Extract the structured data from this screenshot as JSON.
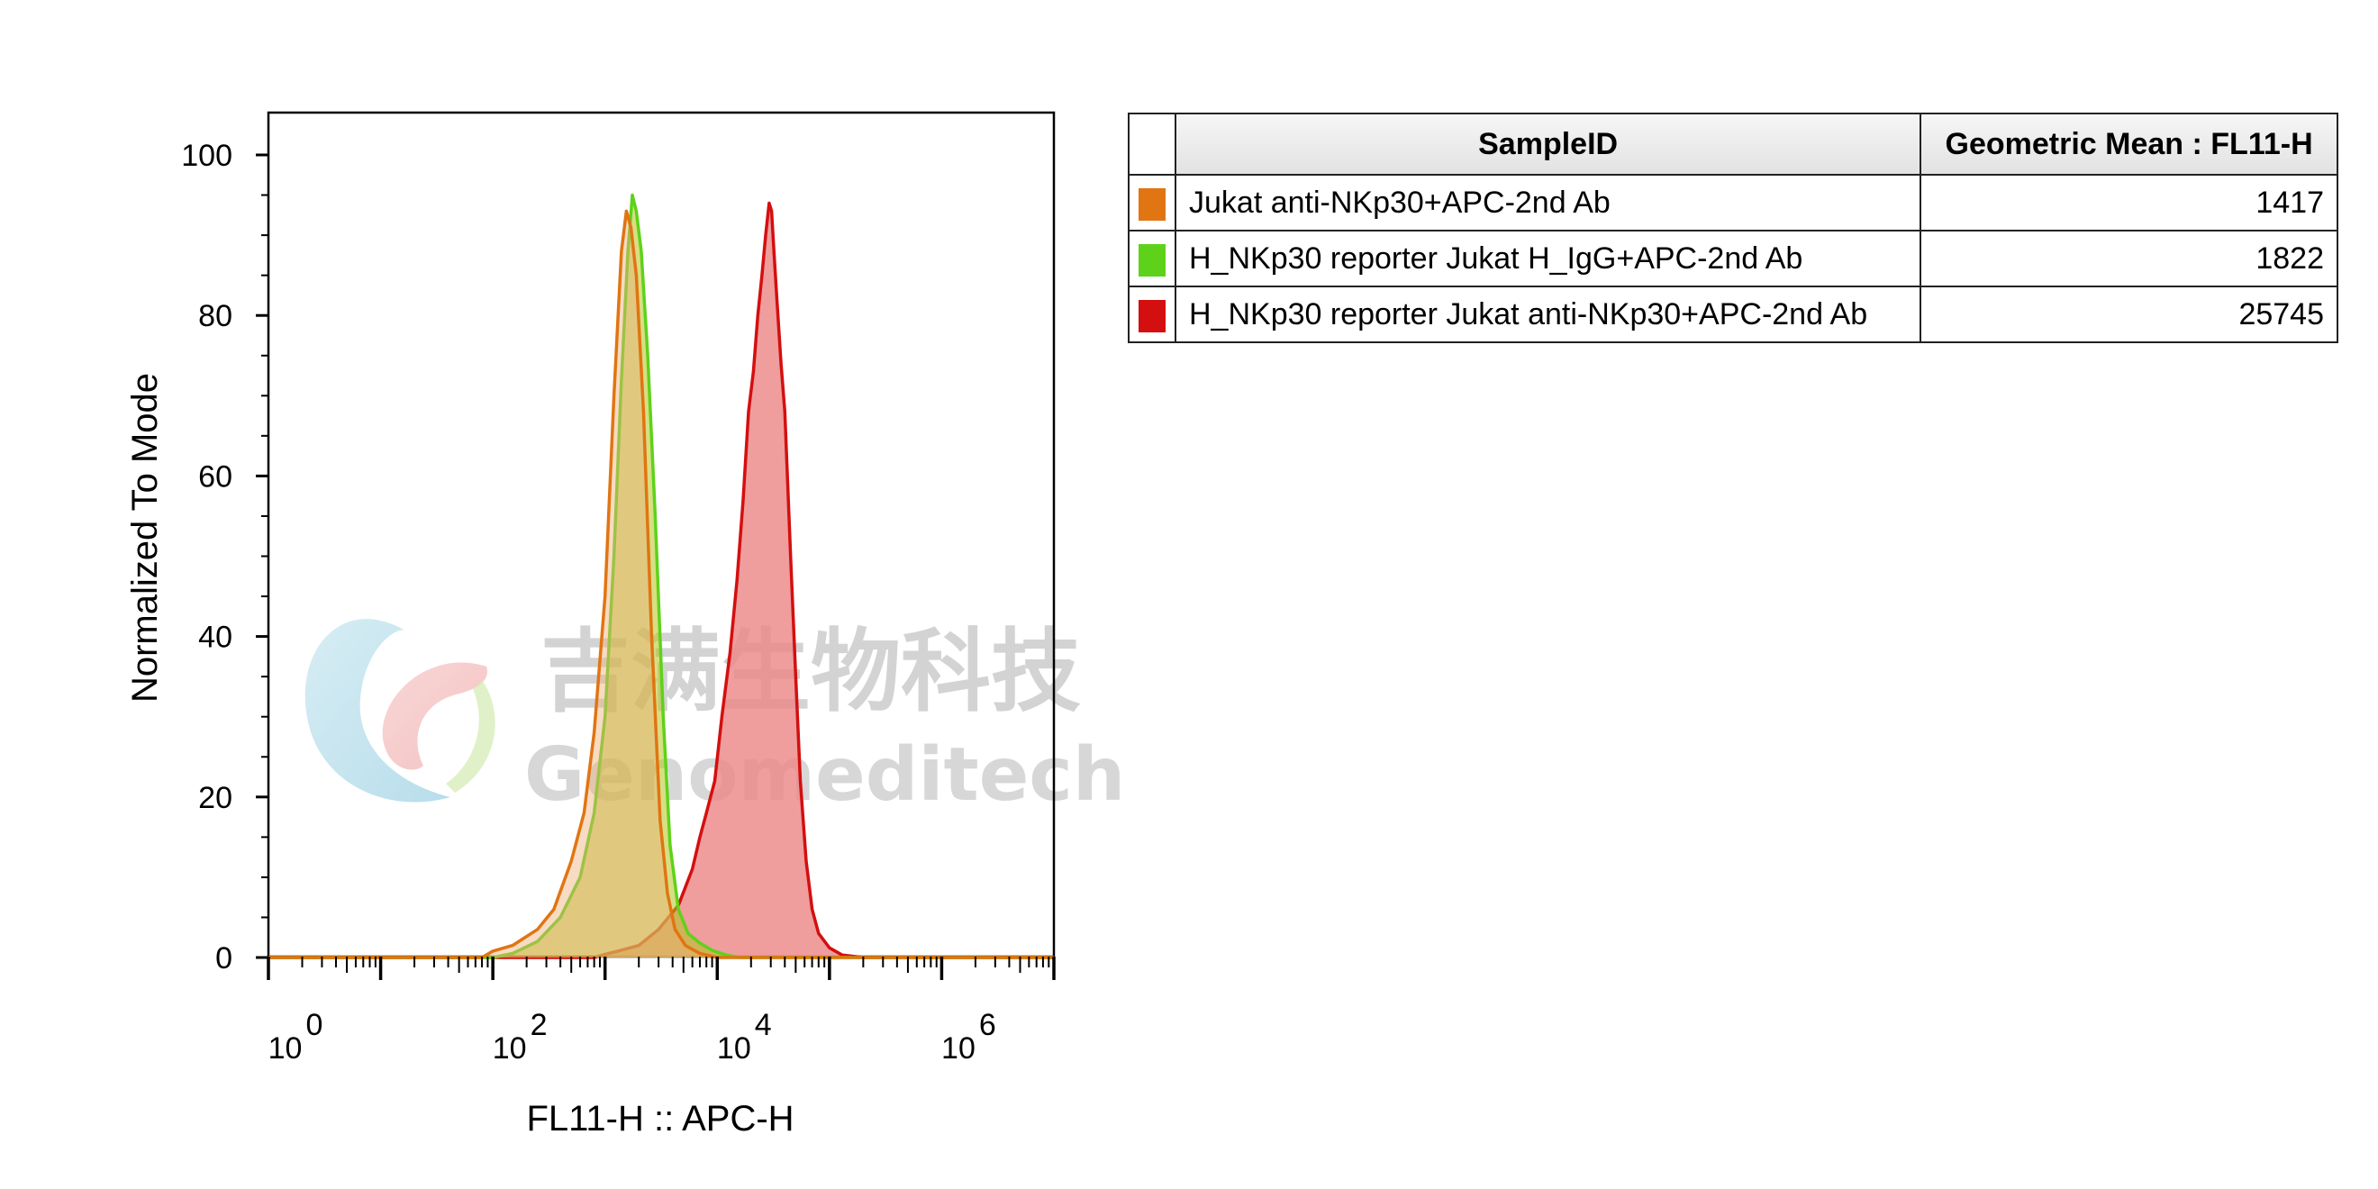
{
  "chart_data": {
    "type": "area",
    "xlabel": "FL11-H :: APC-H",
    "ylabel": "Normalized To Mode",
    "x_scale": "log",
    "xlim": [
      1,
      10000000
    ],
    "ylim": [
      0,
      100
    ],
    "x_ticks": [
      {
        "base": "10",
        "exp": "0",
        "value": 1
      },
      {
        "base": "10",
        "exp": "2",
        "value": 100
      },
      {
        "base": "10",
        "exp": "4",
        "value": 10000
      },
      {
        "base": "10",
        "exp": "6",
        "value": 1000000
      }
    ],
    "y_ticks": [
      "0",
      "20",
      "40",
      "60",
      "80",
      "100"
    ],
    "series": [
      {
        "name": "H_NKp30 reporter Jukat anti-NKp30+APC-2nd Ab",
        "color": "#d40f0f",
        "fill": "#ec8888",
        "fill_opacity": 0.82,
        "points": [
          [
            1,
            0
          ],
          [
            800,
            0
          ],
          [
            1000,
            0.4
          ],
          [
            1300,
            0.8
          ],
          [
            2000,
            1.5
          ],
          [
            3000,
            3.5
          ],
          [
            4500,
            6.5
          ],
          [
            6000,
            11
          ],
          [
            7000,
            15
          ],
          [
            8000,
            18
          ],
          [
            9500,
            22
          ],
          [
            11000,
            30
          ],
          [
            13000,
            38
          ],
          [
            15000,
            47
          ],
          [
            17000,
            57
          ],
          [
            19000,
            68
          ],
          [
            21000,
            73
          ],
          [
            23000,
            80
          ],
          [
            25000,
            85
          ],
          [
            27000,
            90
          ],
          [
            29000,
            94
          ],
          [
            30500,
            93
          ],
          [
            32000,
            88
          ],
          [
            34000,
            82
          ],
          [
            37000,
            74
          ],
          [
            40000,
            68
          ],
          [
            45000,
            50
          ],
          [
            50000,
            35
          ],
          [
            55000,
            22
          ],
          [
            62000,
            12
          ],
          [
            70000,
            6
          ],
          [
            80000,
            3
          ],
          [
            100000,
            1.2
          ],
          [
            130000,
            0.3
          ],
          [
            200000,
            0
          ],
          [
            10000000,
            0
          ]
        ]
      },
      {
        "name": "H_NKp30 reporter Jukat H_IgG+APC-2nd Ab",
        "color": "#5ed21a",
        "fill": "#b5c41e",
        "fill_opacity": 0.55,
        "points": [
          [
            1,
            0
          ],
          [
            100,
            0
          ],
          [
            150,
            0.5
          ],
          [
            250,
            2
          ],
          [
            400,
            5
          ],
          [
            600,
            10
          ],
          [
            800,
            18
          ],
          [
            1000,
            30
          ],
          [
            1200,
            50
          ],
          [
            1400,
            72
          ],
          [
            1600,
            88
          ],
          [
            1750,
            95
          ],
          [
            1900,
            93
          ],
          [
            2100,
            88
          ],
          [
            2400,
            75
          ],
          [
            2800,
            55
          ],
          [
            3300,
            30
          ],
          [
            3800,
            14
          ],
          [
            4500,
            6
          ],
          [
            5500,
            3
          ],
          [
            7000,
            1.8
          ],
          [
            9000,
            0.9
          ],
          [
            12000,
            0.3
          ],
          [
            16000,
            0
          ],
          [
            10000000,
            0
          ]
        ]
      },
      {
        "name": "Jukat anti-NKp30+APC-2nd Ab",
        "color": "#e07512",
        "fill": "#eeb07a",
        "fill_opacity": 0.45,
        "points": [
          [
            1,
            0
          ],
          [
            80,
            0
          ],
          [
            100,
            0.8
          ],
          [
            150,
            1.5
          ],
          [
            250,
            3.5
          ],
          [
            350,
            6
          ],
          [
            500,
            12
          ],
          [
            650,
            18
          ],
          [
            800,
            28
          ],
          [
            1000,
            45
          ],
          [
            1200,
            70
          ],
          [
            1400,
            88
          ],
          [
            1550,
            93
          ],
          [
            1700,
            91
          ],
          [
            1900,
            85
          ],
          [
            2200,
            68
          ],
          [
            2600,
            40
          ],
          [
            3100,
            17
          ],
          [
            3600,
            8
          ],
          [
            4200,
            3.5
          ],
          [
            5200,
            1.5
          ],
          [
            7000,
            0.5
          ],
          [
            10000,
            0
          ],
          [
            10000000,
            0
          ]
        ]
      }
    ]
  },
  "table": {
    "headers": [
      "SampleID",
      "Geometric Mean : FL11-H"
    ],
    "rows": [
      {
        "sample": "Jukat anti-NKp30+APC-2nd Ab",
        "value": "1417",
        "color": "#e07512"
      },
      {
        "sample": "H_NKp30 reporter Jukat H_IgG+APC-2nd Ab",
        "value": "1822",
        "color": "#5ed21a"
      },
      {
        "sample": "H_NKp30 reporter Jukat anti-NKp30+APC-2nd Ab",
        "value": "25745",
        "color": "#d40f0f"
      }
    ]
  },
  "watermark": {
    "cn": "吉满生物科技",
    "en": "Genomeditech"
  }
}
